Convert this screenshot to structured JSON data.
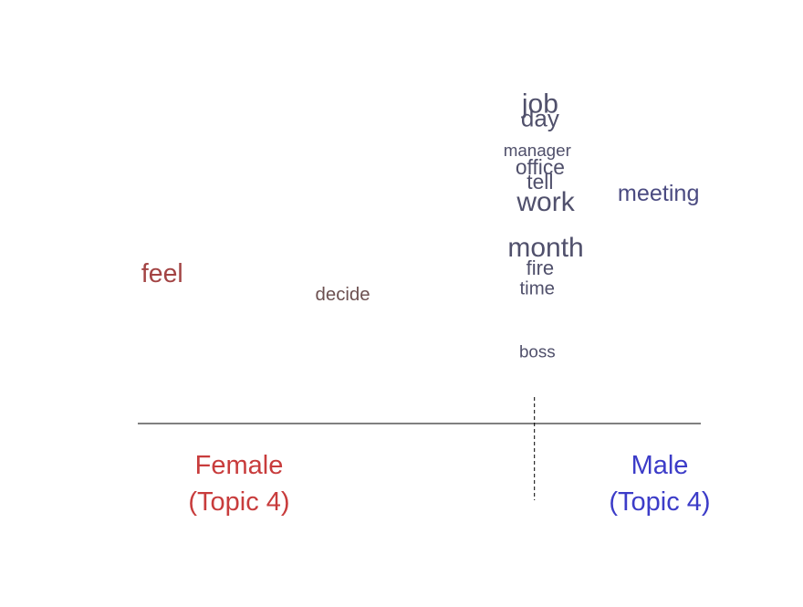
{
  "chart_data": {
    "type": "scatter",
    "title": "",
    "xlabel": "",
    "ylabel": "",
    "xlim": [
      -1,
      1
    ],
    "ylim": [
      0,
      1
    ],
    "grid": false,
    "colors": {
      "female": "#c83c3c",
      "male": "#3c3cc8",
      "neutral": "#555555",
      "baseline": "#000000"
    },
    "words": [
      {
        "text": "job",
        "x": 0.43,
        "y": 0.95,
        "weight": 1.0
      },
      {
        "text": "day",
        "x": 0.43,
        "y": 0.9,
        "weight": 0.75
      },
      {
        "text": "manager",
        "x": 0.42,
        "y": 0.79,
        "weight": 0.3
      },
      {
        "text": "office",
        "x": 0.43,
        "y": 0.73,
        "weight": 0.55
      },
      {
        "text": "tell",
        "x": 0.43,
        "y": 0.68,
        "weight": 0.55
      },
      {
        "text": "work",
        "x": 0.45,
        "y": 0.61,
        "weight": 1.0
      },
      {
        "text": "meeting",
        "x": 0.85,
        "y": 0.64,
        "weight": 0.7
      },
      {
        "text": "month",
        "x": 0.45,
        "y": 0.45,
        "weight": 1.0
      },
      {
        "text": "fire",
        "x": 0.43,
        "y": 0.38,
        "weight": 0.5
      },
      {
        "text": "feel",
        "x": -0.91,
        "y": 0.36,
        "weight": 0.9
      },
      {
        "text": "decide",
        "x": -0.27,
        "y": 0.29,
        "weight": 0.4
      },
      {
        "text": "time",
        "x": 0.42,
        "y": 0.31,
        "weight": 0.4
      },
      {
        "text": "boss",
        "x": 0.42,
        "y": 0.09,
        "weight": 0.3
      }
    ],
    "poles": {
      "female": {
        "line1": "Female",
        "line2": "(Topic 4)"
      },
      "male": {
        "line1": "Male",
        "line2": "(Topic 4)"
      }
    },
    "divider_x": 0.41
  }
}
